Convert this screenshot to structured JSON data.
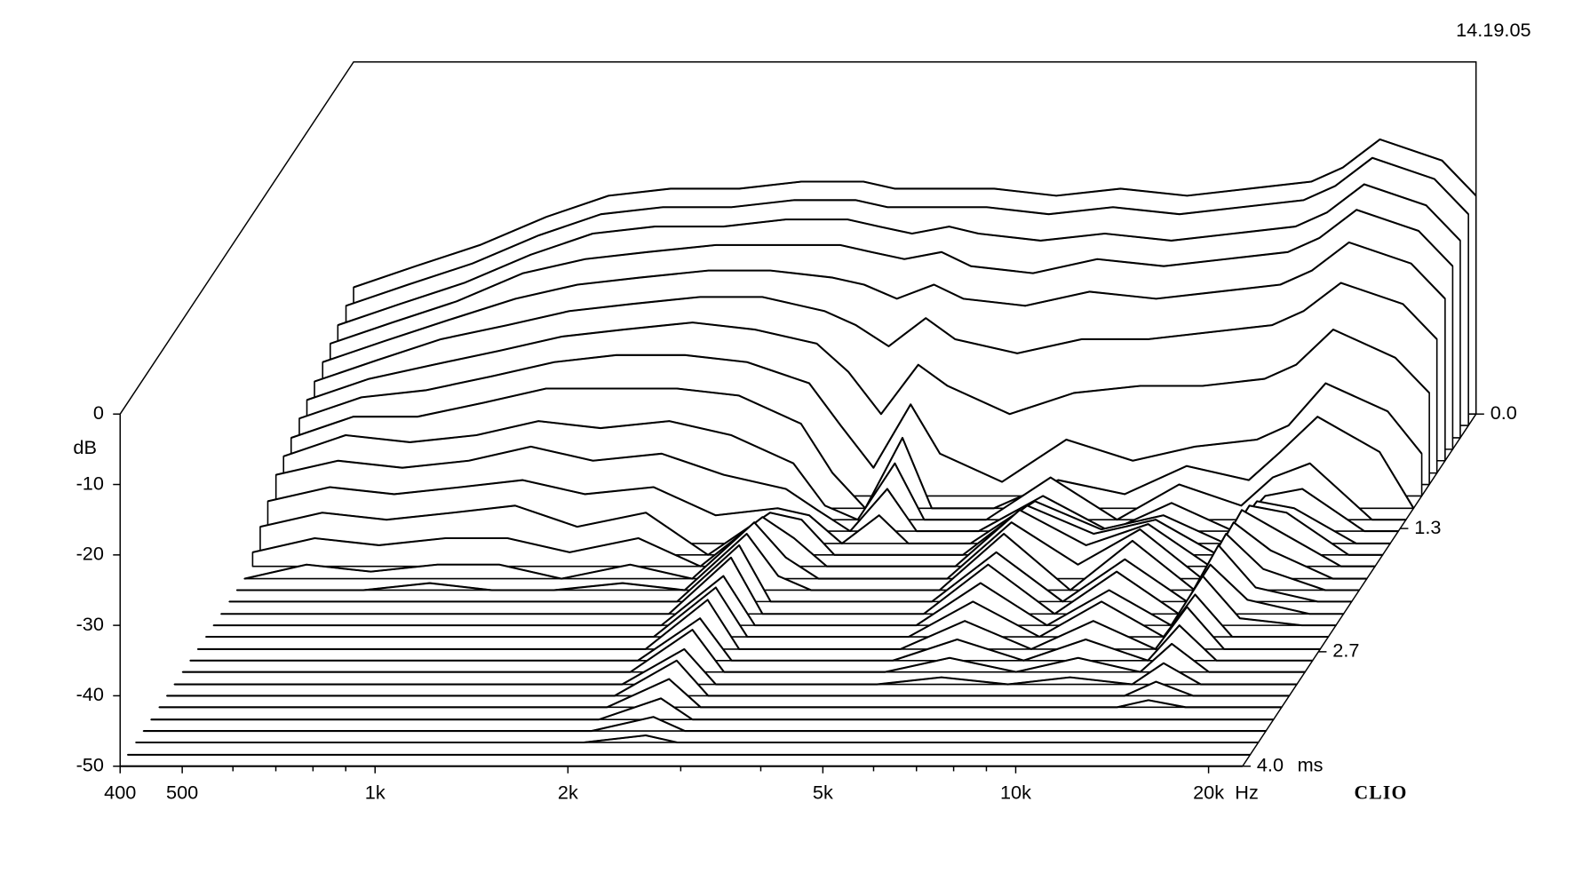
{
  "chart_data": {
    "type": "waterfall",
    "timestamp": "14.19.05",
    "brand": "CLIO",
    "xlabel": "Hz",
    "ylabel": "dB",
    "zlabel": "ms",
    "xscale": "log",
    "xlim": [
      400,
      22600
    ],
    "xticks": [
      400,
      500,
      {
        "value": 1000,
        "label": "1k"
      },
      {
        "value": 2000,
        "label": "2k"
      },
      {
        "value": 5000,
        "label": "5k"
      },
      {
        "value": 10000,
        "label": "10k"
      },
      {
        "value": 20000,
        "label": "20k"
      }
    ],
    "xminorticks": [
      600,
      700,
      800,
      900,
      3000,
      4000,
      6000,
      7000,
      8000,
      9000
    ],
    "ylim": [
      -50,
      0
    ],
    "yticks": [
      0,
      -10,
      -20,
      -30,
      -40,
      -50
    ],
    "zlim": [
      0,
      4
    ],
    "zticks": [
      {
        "value": 0,
        "label": "0.0"
      },
      1.3,
      2.7,
      {
        "value": 4,
        "label": "4.0"
      }
    ],
    "color": "#000000",
    "x": [
      400,
      500,
      630,
      800,
      1000,
      1250,
      1600,
      2000,
      2500,
      2800,
      3150,
      3600,
      4000,
      5000,
      6300,
      8000,
      10000,
      12500,
      14000,
      16000,
      20000,
      22600
    ],
    "z": [
      0,
      0.13,
      0.27,
      0.4,
      0.53,
      0.67,
      0.8,
      0.93,
      1.07,
      1.2,
      1.33,
      1.47,
      1.6,
      1.73,
      1.87,
      2,
      2.13,
      2.27,
      2.4,
      2.53,
      2.67,
      2.8,
      2.93,
      3.07,
      3.2,
      3.33,
      3.47,
      3.6,
      3.73,
      3.87,
      4
    ],
    "values": [
      [
        -32,
        -29,
        -26,
        -22,
        -19,
        -18,
        -18,
        -17,
        -17,
        -18,
        -18,
        -18,
        -18,
        -19,
        -18,
        -19,
        -18,
        -17,
        -15,
        -11,
        -14,
        -19
      ],
      [
        -33,
        -30,
        -27,
        -23,
        -20,
        -19,
        -19,
        -18,
        -18,
        -19,
        -19,
        -19,
        -19,
        -20,
        -19,
        -20,
        -19,
        -18,
        -16,
        -12,
        -15,
        -20
      ],
      [
        -34,
        -31,
        -28,
        -24,
        -21,
        -20,
        -20,
        -19,
        -19,
        -20,
        -21,
        -20,
        -21,
        -22,
        -21,
        -22,
        -21,
        -20,
        -18,
        -14,
        -17,
        -22
      ],
      [
        -35,
        -32,
        -29,
        -25,
        -23,
        -22,
        -21,
        -21,
        -21,
        -22,
        -23,
        -22,
        -24,
        -25,
        -23,
        -24,
        -23,
        -22,
        -20,
        -16,
        -19,
        -24
      ],
      [
        -36,
        -33,
        -30,
        -27,
        -25,
        -24,
        -23,
        -23,
        -24,
        -25,
        -27,
        -25,
        -27,
        -28,
        -26,
        -27,
        -26,
        -25,
        -23,
        -19,
        -22,
        -27
      ],
      [
        -37,
        -34,
        -31,
        -29,
        -27,
        -26,
        -25,
        -25,
        -27,
        -29,
        -32,
        -28,
        -31,
        -33,
        -31,
        -31,
        -30,
        -29,
        -27,
        -23,
        -26,
        -31
      ],
      [
        -38,
        -35,
        -33,
        -31,
        -29,
        -28,
        -27,
        -28,
        -30,
        -34,
        -40,
        -33,
        -36,
        -40,
        -37,
        -36,
        -36,
        -35,
        -33,
        -28,
        -32,
        -37
      ],
      [
        -39,
        -36,
        -35,
        -33,
        -31,
        -30,
        -30,
        -31,
        -34,
        -40,
        -46,
        -37,
        -44,
        -48,
        -42,
        -45,
        -43,
        -42,
        -40,
        -34,
        -38,
        -44
      ],
      [
        -40,
        -37,
        -37,
        -35,
        -33,
        -33,
        -33,
        -34,
        -38,
        -45,
        -50,
        -40,
        -50,
        -50,
        -46,
        -48,
        -44,
        -46,
        -42,
        -37,
        -42,
        -50
      ],
      [
        -41,
        -38,
        -39,
        -38,
        -36,
        -37,
        -36,
        -38,
        -42,
        -48,
        -50,
        -42,
        -50,
        -50,
        -44,
        -50,
        -45,
        -48,
        -44,
        -42,
        -50,
        -50
      ],
      [
        -42,
        -40,
        -41,
        -40,
        -38,
        -40,
        -39,
        -42,
        -44,
        -47,
        -50,
        -44,
        -50,
        -50,
        -45,
        -50,
        -46,
        -50,
        -45,
        -44,
        -50,
        -50
      ],
      [
        -44,
        -42,
        -43,
        -42,
        -41,
        -43,
        -42,
        -46,
        -45,
        -46,
        -50,
        -46,
        -50,
        -50,
        -44,
        -48,
        -46,
        -50,
        -44,
        -45,
        -50,
        -50
      ],
      [
        -46,
        -44,
        -45,
        -44,
        -43,
        -46,
        -44,
        -50,
        -44,
        -45,
        -50,
        -50,
        -50,
        -50,
        -43,
        -47,
        -45,
        -50,
        -43,
        -44,
        -50,
        -50
      ],
      [
        -48,
        -46,
        -47,
        -46,
        -46,
        -48,
        -46,
        -50,
        -43,
        -46,
        -50,
        -50,
        -50,
        -50,
        -42,
        -47,
        -44,
        -50,
        -42,
        -45,
        -50,
        -50
      ],
      [
        -50,
        -48,
        -49,
        -48,
        -48,
        -50,
        -48,
        -50,
        -42,
        -47,
        -50,
        -50,
        -50,
        -50,
        -42,
        -48,
        -43,
        -50,
        -42,
        -46,
        -50,
        -50
      ],
      [
        -50,
        -50,
        -50,
        -49,
        -50,
        -50,
        -49,
        -50,
        -42,
        -48,
        -50,
        -50,
        -50,
        -50,
        -42,
        -50,
        -43,
        -50,
        -42,
        -47,
        -50,
        -50
      ],
      [
        -50,
        -50,
        -50,
        -50,
        -50,
        -50,
        -50,
        -50,
        -42,
        -50,
        -50,
        -50,
        -50,
        -50,
        -43,
        -50,
        -44,
        -50,
        -42,
        -48,
        -50,
        -50
      ],
      [
        -50,
        -50,
        -50,
        -50,
        -50,
        -50,
        -50,
        -50,
        -42,
        -50,
        -50,
        -50,
        -50,
        -50,
        -43,
        -50,
        -44,
        -50,
        -43,
        -48,
        -50,
        -50
      ],
      [
        -50,
        -50,
        -50,
        -50,
        -50,
        -50,
        -50,
        -50,
        -43,
        -50,
        -50,
        -50,
        -50,
        -50,
        -44,
        -50,
        -45,
        -50,
        -43,
        -49,
        -50,
        -50
      ],
      [
        -50,
        -50,
        -50,
        -50,
        -50,
        -50,
        -50,
        -50,
        -43,
        -50,
        -50,
        -50,
        -50,
        -50,
        -45,
        -50,
        -45,
        -50,
        -44,
        -50,
        -50,
        -50
      ],
      [
        -50,
        -50,
        -50,
        -50,
        -50,
        -50,
        -50,
        -50,
        -43,
        -50,
        -50,
        -50,
        -50,
        -50,
        -46,
        -50,
        -46,
        -50,
        -44,
        -50,
        -50,
        -50
      ],
      [
        -50,
        -50,
        -50,
        -50,
        -50,
        -50,
        -50,
        -50,
        -44,
        -50,
        -50,
        -50,
        -50,
        -50,
        -47,
        -50,
        -47,
        -50,
        -45,
        -50,
        -50,
        -50
      ],
      [
        -50,
        -50,
        -50,
        -50,
        -50,
        -50,
        -50,
        -50,
        -44,
        -50,
        -50,
        -50,
        -50,
        -50,
        -48,
        -50,
        -48,
        -50,
        -46,
        -50,
        -50,
        -50
      ],
      [
        -50,
        -50,
        -50,
        -50,
        -50,
        -50,
        -50,
        -50,
        -45,
        -50,
        -50,
        -50,
        -50,
        -50,
        -49,
        -50,
        -49,
        -50,
        -47,
        -50,
        -50,
        -50
      ],
      [
        -50,
        -50,
        -50,
        -50,
        -50,
        -50,
        -50,
        -50,
        -45,
        -50,
        -50,
        -50,
        -50,
        -50,
        -50,
        -50,
        -50,
        -50,
        -48,
        -50,
        -50,
        -50
      ],
      [
        -50,
        -50,
        -50,
        -50,
        -50,
        -50,
        -50,
        -50,
        -46,
        -50,
        -50,
        -50,
        -50,
        -50,
        -50,
        -50,
        -50,
        -50,
        -49,
        -50,
        -50,
        -50
      ],
      [
        -50,
        -50,
        -50,
        -50,
        -50,
        -50,
        -50,
        -50,
        -47,
        -50,
        -50,
        -50,
        -50,
        -50,
        -50,
        -50,
        -50,
        -50,
        -50,
        -50,
        -50,
        -50
      ],
      [
        -50,
        -50,
        -50,
        -50,
        -50,
        -50,
        -50,
        -50,
        -48,
        -50,
        -50,
        -50,
        -50,
        -50,
        -50,
        -50,
        -50,
        -50,
        -50,
        -50,
        -50,
        -50
      ],
      [
        -50,
        -50,
        -50,
        -50,
        -50,
        -50,
        -50,
        -50,
        -49,
        -50,
        -50,
        -50,
        -50,
        -50,
        -50,
        -50,
        -50,
        -50,
        -50,
        -50,
        -50,
        -50
      ],
      [
        -50,
        -50,
        -50,
        -50,
        -50,
        -50,
        -50,
        -50,
        -50,
        -50,
        -50,
        -50,
        -50,
        -50,
        -50,
        -50,
        -50,
        -50,
        -50,
        -50,
        -50,
        -50
      ],
      [
        -50,
        -50,
        -50,
        -50,
        -50,
        -50,
        -50,
        -50,
        -50,
        -50,
        -50,
        -50,
        -50,
        -50,
        -50,
        -50,
        -50,
        -50,
        -50,
        -50,
        -50,
        -50
      ]
    ]
  }
}
